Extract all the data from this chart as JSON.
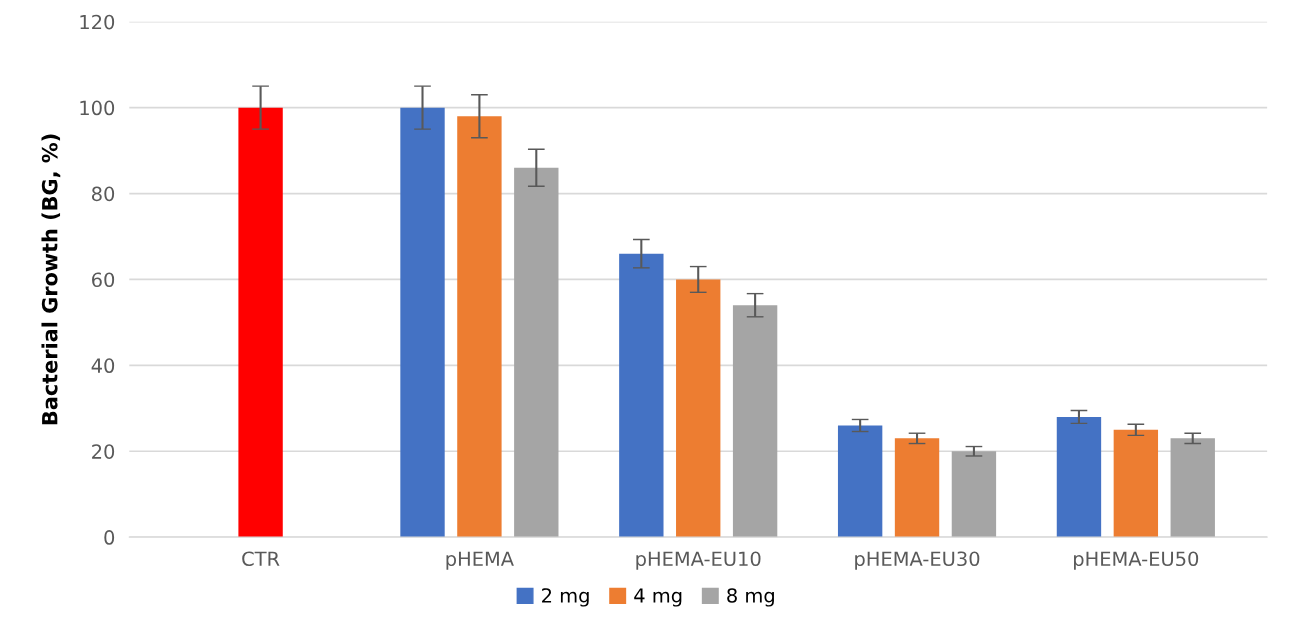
{
  "chart_data": {
    "type": "bar",
    "ylabel": "Bacterial Growth (BG, %)",
    "categories": [
      "CTR",
      "pHEMA",
      "pHEMA-EU10",
      "pHEMA-EU30",
      "pHEMA-EU50"
    ],
    "series": [
      {
        "color": "#ff0000",
        "values": [
          100,
          null,
          null,
          null,
          null
        ],
        "errors": [
          5,
          null,
          null,
          null,
          null
        ]
      },
      {
        "name": "2 mg",
        "color": "#4472c4",
        "values": [
          null,
          100,
          66,
          26,
          28
        ],
        "errors": [
          null,
          5,
          3.3,
          1.4,
          1.5
        ]
      },
      {
        "name": "4 mg",
        "color": "#ed7d31",
        "values": [
          null,
          98,
          60,
          23,
          25
        ],
        "errors": [
          null,
          5,
          3,
          1.2,
          1.3
        ]
      },
      {
        "name": "8 mg",
        "color": "#a5a5a5",
        "values": [
          null,
          86,
          54,
          20,
          23
        ],
        "errors": [
          null,
          4.3,
          2.7,
          1.1,
          1.2
        ]
      }
    ],
    "ylim": [
      0,
      120
    ],
    "yticks": [
      0,
      20,
      40,
      60,
      80,
      100,
      120
    ],
    "grid": "y",
    "legend": "bottom"
  }
}
